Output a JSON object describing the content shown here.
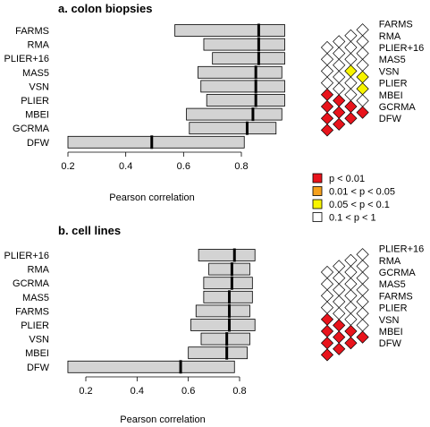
{
  "legend": {
    "entries": [
      {
        "label": "p < 0.01",
        "color": "#e8141c"
      },
      {
        "label": "0.01 < p < 0.05",
        "color": "#f5a11e"
      },
      {
        "label": "0.05 < p < 0.1",
        "color": "#f7f400"
      },
      {
        "label": "0.1 < p < 1",
        "color": "#ffffff"
      }
    ]
  },
  "chart_data": [
    {
      "type": "bar",
      "subtype": "range-bar",
      "title": "a. colon biopsies",
      "xlabel": "Pearson correlation",
      "ylabel": "",
      "xlim": [
        0.2,
        1.0
      ],
      "xticks": [
        "0.2",
        "0.4",
        "0.6",
        "0.8"
      ],
      "xtick_values": [
        0.2,
        0.4,
        0.6,
        0.8
      ],
      "categories": [
        "FARMS",
        "RMA",
        "PLIER+16",
        "MAS5",
        "VSN",
        "PLIER",
        "MBEI",
        "GCRMA",
        "DFW"
      ],
      "low": [
        0.57,
        0.67,
        0.7,
        0.65,
        0.66,
        0.68,
        0.61,
        0.62,
        0.2
      ],
      "median": [
        0.86,
        0.86,
        0.86,
        0.85,
        0.85,
        0.85,
        0.84,
        0.82,
        0.49
      ],
      "high": [
        0.95,
        0.95,
        0.95,
        0.94,
        0.95,
        0.95,
        0.94,
        0.92,
        0.81
      ],
      "significance": {
        "labels": [
          "FARMS",
          "RMA",
          "PLIER+16",
          "MAS5",
          "VSN",
          "PLIER",
          "MBEI",
          "GCRMA",
          "DFW"
        ],
        "level_colors": [
          "#e8141c",
          "#f5a11e",
          "#f7f400",
          "#ffffff"
        ],
        "cells": [
          [
            1,
            0,
            3
          ],
          [
            1,
            1,
            3
          ],
          [
            1,
            2,
            3
          ],
          [
            1,
            3,
            3
          ],
          [
            1,
            4,
            2
          ],
          [
            1,
            5,
            2
          ],
          [
            1,
            6,
            3
          ],
          [
            1,
            7,
            0
          ],
          [
            2,
            0,
            3
          ],
          [
            2,
            1,
            3
          ],
          [
            2,
            2,
            3
          ],
          [
            2,
            3,
            2
          ],
          [
            2,
            4,
            3
          ],
          [
            2,
            5,
            3
          ],
          [
            2,
            6,
            0
          ],
          [
            2,
            7,
            0
          ],
          [
            3,
            0,
            3
          ],
          [
            3,
            1,
            3
          ],
          [
            3,
            2,
            3
          ],
          [
            3,
            3,
            3
          ],
          [
            3,
            4,
            3
          ],
          [
            3,
            5,
            0
          ],
          [
            3,
            6,
            0
          ],
          [
            3,
            7,
            0
          ],
          [
            4,
            0,
            3
          ],
          [
            4,
            1,
            3
          ],
          [
            4,
            2,
            3
          ],
          [
            4,
            3,
            3
          ],
          [
            4,
            4,
            0
          ],
          [
            4,
            5,
            0
          ],
          [
            4,
            6,
            0
          ],
          [
            4,
            7,
            0
          ]
        ]
      }
    },
    {
      "type": "bar",
      "subtype": "range-bar",
      "title": "b. cell lines",
      "xlabel": "Pearson correlation",
      "ylabel": "",
      "xlim": [
        0.12,
        0.92
      ],
      "xticks": [
        "0.2",
        "0.4",
        "0.6",
        "0.8"
      ],
      "xtick_values": [
        0.2,
        0.4,
        0.6,
        0.8
      ],
      "categories": [
        "PLIER+16",
        "RMA",
        "GCRMA",
        "MAS5",
        "FARMS",
        "PLIER",
        "VSN",
        "MBEI",
        "DFW"
      ],
      "low": [
        0.64,
        0.68,
        0.66,
        0.66,
        0.63,
        0.61,
        0.65,
        0.6,
        0.13
      ],
      "median": [
        0.78,
        0.77,
        0.77,
        0.76,
        0.76,
        0.76,
        0.75,
        0.75,
        0.57
      ],
      "high": [
        0.86,
        0.84,
        0.85,
        0.85,
        0.84,
        0.86,
        0.84,
        0.83,
        0.78
      ],
      "significance": {
        "labels": [
          "PLIER+16",
          "RMA",
          "GCRMA",
          "MAS5",
          "FARMS",
          "PLIER",
          "VSN",
          "MBEI",
          "DFW"
        ],
        "level_colors": [
          "#e8141c",
          "#f5a11e",
          "#f7f400",
          "#ffffff"
        ],
        "cells": [
          [
            1,
            0,
            3
          ],
          [
            1,
            1,
            3
          ],
          [
            1,
            2,
            3
          ],
          [
            1,
            3,
            3
          ],
          [
            1,
            4,
            3
          ],
          [
            1,
            5,
            3
          ],
          [
            1,
            6,
            3
          ],
          [
            1,
            7,
            0
          ],
          [
            2,
            0,
            3
          ],
          [
            2,
            1,
            3
          ],
          [
            2,
            2,
            3
          ],
          [
            2,
            3,
            3
          ],
          [
            2,
            4,
            3
          ],
          [
            2,
            5,
            3
          ],
          [
            2,
            6,
            0
          ],
          [
            2,
            7,
            0
          ],
          [
            3,
            0,
            3
          ],
          [
            3,
            1,
            3
          ],
          [
            3,
            2,
            3
          ],
          [
            3,
            3,
            3
          ],
          [
            3,
            4,
            3
          ],
          [
            3,
            5,
            0
          ],
          [
            3,
            6,
            0
          ],
          [
            3,
            7,
            0
          ],
          [
            4,
            0,
            3
          ],
          [
            4,
            1,
            3
          ],
          [
            4,
            2,
            3
          ],
          [
            4,
            3,
            3
          ],
          [
            4,
            4,
            0
          ],
          [
            4,
            5,
            0
          ],
          [
            4,
            6,
            0
          ],
          [
            4,
            7,
            0
          ]
        ]
      }
    }
  ]
}
